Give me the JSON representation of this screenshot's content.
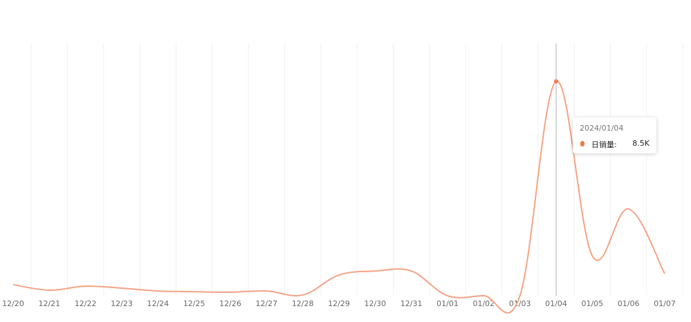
{
  "chart_data": {
    "type": "line",
    "categories": [
      "12/20",
      "12/21",
      "12/22",
      "12/23",
      "12/24",
      "12/25",
      "12/26",
      "12/27",
      "12/28",
      "12/29",
      "12/30",
      "12/31",
      "01/01",
      "01/02",
      "01/03",
      "01/04",
      "01/05",
      "01/06",
      "01/07"
    ],
    "series": [
      {
        "color": "#f4a384",
        "values": [
          440,
          220,
          380,
          300,
          190,
          160,
          140,
          190,
          30,
          820,
          980,
          980,
          0,
          0,
          0,
          8500,
          1580,
          3440,
          870
        ]
      }
    ],
    "ylim": [
      0,
      10000
    ],
    "tooltip": {
      "date": "2024/01/04",
      "label": "日销量:",
      "value": "8.5K"
    }
  }
}
